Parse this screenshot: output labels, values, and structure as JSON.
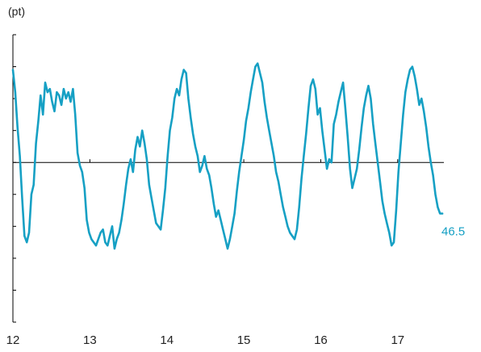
{
  "chart_data": {
    "type": "line",
    "ylabel": "(pt)",
    "xlabel": "",
    "x_tick_labels": [
      "12",
      "13",
      "14",
      "15",
      "16",
      "17"
    ],
    "end_label": "46.5",
    "colors": {
      "series": "#16a0c4",
      "end_label": "#16a0c4",
      "axis": "#000000",
      "text": "#222222"
    },
    "grid": false,
    "xlim": [
      12,
      17.6
    ],
    "ylim": [
      -5,
      4
    ],
    "zero_line": 0,
    "series": [
      {
        "values": [
          [
            12.0,
            2.9
          ],
          [
            12.03,
            2.2
          ],
          [
            12.06,
            1.1
          ],
          [
            12.09,
            0.2
          ],
          [
            12.12,
            -1.1
          ],
          [
            12.15,
            -2.3
          ],
          [
            12.18,
            -2.5
          ],
          [
            12.21,
            -2.2
          ],
          [
            12.24,
            -1.0
          ],
          [
            12.27,
            -0.7
          ],
          [
            12.3,
            0.6
          ],
          [
            12.33,
            1.3
          ],
          [
            12.36,
            2.1
          ],
          [
            12.39,
            1.5
          ],
          [
            12.42,
            2.5
          ],
          [
            12.45,
            2.2
          ],
          [
            12.48,
            2.3
          ],
          [
            12.51,
            1.9
          ],
          [
            12.54,
            1.6
          ],
          [
            12.57,
            2.2
          ],
          [
            12.6,
            2.1
          ],
          [
            12.63,
            1.8
          ],
          [
            12.66,
            2.3
          ],
          [
            12.69,
            2.0
          ],
          [
            12.72,
            2.2
          ],
          [
            12.75,
            1.9
          ],
          [
            12.78,
            2.3
          ],
          [
            12.81,
            1.5
          ],
          [
            12.84,
            0.3
          ],
          [
            12.87,
            -0.1
          ],
          [
            12.9,
            -0.3
          ],
          [
            12.93,
            -0.8
          ],
          [
            12.96,
            -1.8
          ],
          [
            12.99,
            -2.2
          ],
          [
            13.02,
            -2.4
          ],
          [
            13.05,
            -2.5
          ],
          [
            13.08,
            -2.6
          ],
          [
            13.11,
            -2.4
          ],
          [
            13.14,
            -2.2
          ],
          [
            13.17,
            -2.1
          ],
          [
            13.2,
            -2.5
          ],
          [
            13.23,
            -2.6
          ],
          [
            13.26,
            -2.3
          ],
          [
            13.29,
            -2.0
          ],
          [
            13.32,
            -2.7
          ],
          [
            13.35,
            -2.4
          ],
          [
            13.38,
            -2.2
          ],
          [
            13.41,
            -1.8
          ],
          [
            13.44,
            -1.3
          ],
          [
            13.47,
            -0.7
          ],
          [
            13.5,
            -0.2
          ],
          [
            13.53,
            0.1
          ],
          [
            13.56,
            -0.3
          ],
          [
            13.59,
            0.4
          ],
          [
            13.62,
            0.8
          ],
          [
            13.65,
            0.5
          ],
          [
            13.68,
            1.0
          ],
          [
            13.71,
            0.6
          ],
          [
            13.74,
            0.1
          ],
          [
            13.77,
            -0.7
          ],
          [
            13.8,
            -1.1
          ],
          [
            13.83,
            -1.5
          ],
          [
            13.86,
            -1.9
          ],
          [
            13.89,
            -2.0
          ],
          [
            13.92,
            -2.1
          ],
          [
            13.95,
            -1.5
          ],
          [
            13.98,
            -0.8
          ],
          [
            14.01,
            0.2
          ],
          [
            14.04,
            1.0
          ],
          [
            14.07,
            1.4
          ],
          [
            14.1,
            2.0
          ],
          [
            14.13,
            2.3
          ],
          [
            14.16,
            2.1
          ],
          [
            14.19,
            2.6
          ],
          [
            14.22,
            2.9
          ],
          [
            14.25,
            2.8
          ],
          [
            14.28,
            2.0
          ],
          [
            14.31,
            1.4
          ],
          [
            14.34,
            0.9
          ],
          [
            14.37,
            0.5
          ],
          [
            14.4,
            0.2
          ],
          [
            14.43,
            -0.3
          ],
          [
            14.46,
            -0.1
          ],
          [
            14.49,
            0.2
          ],
          [
            14.52,
            -0.2
          ],
          [
            14.55,
            -0.4
          ],
          [
            14.58,
            -0.8
          ],
          [
            14.61,
            -1.3
          ],
          [
            14.64,
            -1.7
          ],
          [
            14.67,
            -1.5
          ],
          [
            14.7,
            -1.8
          ],
          [
            14.73,
            -2.1
          ],
          [
            14.76,
            -2.4
          ],
          [
            14.79,
            -2.7
          ],
          [
            14.82,
            -2.4
          ],
          [
            14.85,
            -2.0
          ],
          [
            14.88,
            -1.6
          ],
          [
            14.91,
            -0.9
          ],
          [
            14.94,
            -0.3
          ],
          [
            14.97,
            0.2
          ],
          [
            15.0,
            0.7
          ],
          [
            15.03,
            1.3
          ],
          [
            15.06,
            1.7
          ],
          [
            15.09,
            2.2
          ],
          [
            15.12,
            2.6
          ],
          [
            15.15,
            3.0
          ],
          [
            15.18,
            3.1
          ],
          [
            15.21,
            2.8
          ],
          [
            15.24,
            2.5
          ],
          [
            15.27,
            1.9
          ],
          [
            15.3,
            1.4
          ],
          [
            15.33,
            1.0
          ],
          [
            15.36,
            0.6
          ],
          [
            15.39,
            0.2
          ],
          [
            15.42,
            -0.3
          ],
          [
            15.45,
            -0.6
          ],
          [
            15.48,
            -1.0
          ],
          [
            15.51,
            -1.4
          ],
          [
            15.54,
            -1.7
          ],
          [
            15.57,
            -2.0
          ],
          [
            15.6,
            -2.2
          ],
          [
            15.63,
            -2.3
          ],
          [
            15.66,
            -2.4
          ],
          [
            15.69,
            -2.1
          ],
          [
            15.72,
            -1.4
          ],
          [
            15.75,
            -0.5
          ],
          [
            15.78,
            0.2
          ],
          [
            15.81,
            0.9
          ],
          [
            15.84,
            1.7
          ],
          [
            15.87,
            2.4
          ],
          [
            15.9,
            2.6
          ],
          [
            15.93,
            2.3
          ],
          [
            15.96,
            1.5
          ],
          [
            15.99,
            1.7
          ],
          [
            16.02,
            1.0
          ],
          [
            16.05,
            0.4
          ],
          [
            16.08,
            -0.2
          ],
          [
            16.11,
            0.1
          ],
          [
            16.14,
            0.0
          ],
          [
            16.17,
            1.2
          ],
          [
            16.2,
            1.5
          ],
          [
            16.23,
            1.9
          ],
          [
            16.26,
            2.2
          ],
          [
            16.29,
            2.5
          ],
          [
            16.32,
            1.7
          ],
          [
            16.35,
            0.8
          ],
          [
            16.38,
            -0.2
          ],
          [
            16.41,
            -0.8
          ],
          [
            16.44,
            -0.5
          ],
          [
            16.47,
            -0.2
          ],
          [
            16.5,
            0.4
          ],
          [
            16.53,
            1.1
          ],
          [
            16.56,
            1.7
          ],
          [
            16.59,
            2.1
          ],
          [
            16.62,
            2.4
          ],
          [
            16.65,
            2.0
          ],
          [
            16.68,
            1.2
          ],
          [
            16.71,
            0.6
          ],
          [
            16.74,
            0.0
          ],
          [
            16.77,
            -0.6
          ],
          [
            16.8,
            -1.2
          ],
          [
            16.83,
            -1.6
          ],
          [
            16.86,
            -1.9
          ],
          [
            16.89,
            -2.2
          ],
          [
            16.92,
            -2.6
          ],
          [
            16.95,
            -2.5
          ],
          [
            16.98,
            -1.5
          ],
          [
            17.01,
            -0.3
          ],
          [
            17.04,
            0.6
          ],
          [
            17.07,
            1.5
          ],
          [
            17.1,
            2.2
          ],
          [
            17.13,
            2.6
          ],
          [
            17.16,
            2.9
          ],
          [
            17.19,
            3.0
          ],
          [
            17.22,
            2.7
          ],
          [
            17.25,
            2.3
          ],
          [
            17.28,
            1.8
          ],
          [
            17.31,
            2.0
          ],
          [
            17.34,
            1.6
          ],
          [
            17.37,
            1.1
          ],
          [
            17.4,
            0.5
          ],
          [
            17.43,
            0.0
          ],
          [
            17.46,
            -0.4
          ],
          [
            17.49,
            -1.0
          ],
          [
            17.52,
            -1.4
          ],
          [
            17.55,
            -1.6
          ],
          [
            17.58,
            -1.6
          ]
        ]
      }
    ]
  }
}
